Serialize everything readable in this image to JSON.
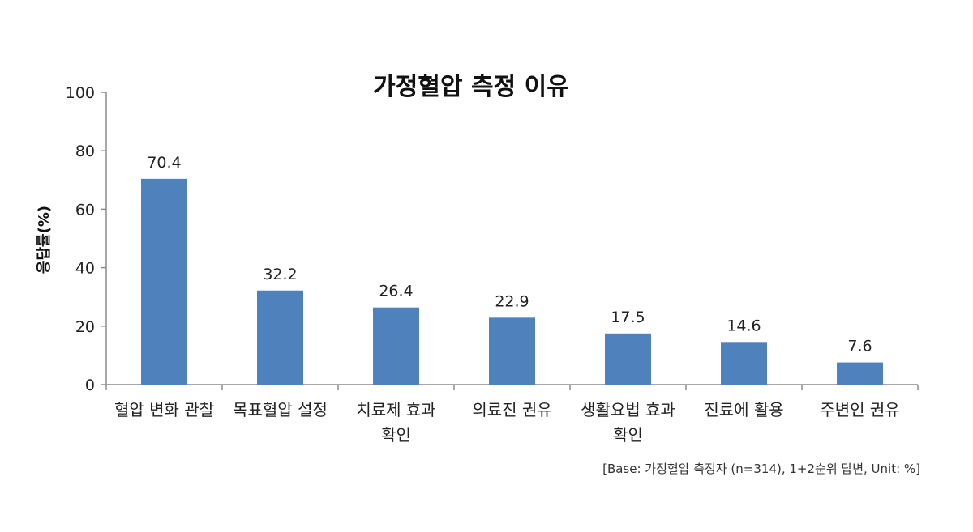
{
  "chart_data": {
    "type": "bar",
    "title": "가정혈압 측정 이유",
    "xlabel": "",
    "ylabel": "응답률(%)",
    "ylim": [
      0,
      100
    ],
    "yticks": [
      0,
      20,
      40,
      60,
      80,
      100
    ],
    "categories": [
      [
        "혈압 변화 관찰"
      ],
      [
        "목표혈압 설정"
      ],
      [
        "치료제 효과",
        "확인"
      ],
      [
        "의료진 권유"
      ],
      [
        "생활요법 효과",
        "확인"
      ],
      [
        "진료에 활용"
      ],
      [
        "주변인 권유"
      ]
    ],
    "values": [
      70.4,
      32.2,
      26.4,
      22.9,
      17.5,
      14.6,
      7.6
    ],
    "value_labels": [
      "70.4",
      "32.2",
      "26.4",
      "22.9",
      "17.5",
      "14.6",
      "7.6"
    ],
    "bar_color": "#4f81bd",
    "grid": false,
    "legend": "none",
    "footnote": "[Base: 가정혈압 측정자 (n=314), 1+2순위 답변, Unit: %]"
  }
}
